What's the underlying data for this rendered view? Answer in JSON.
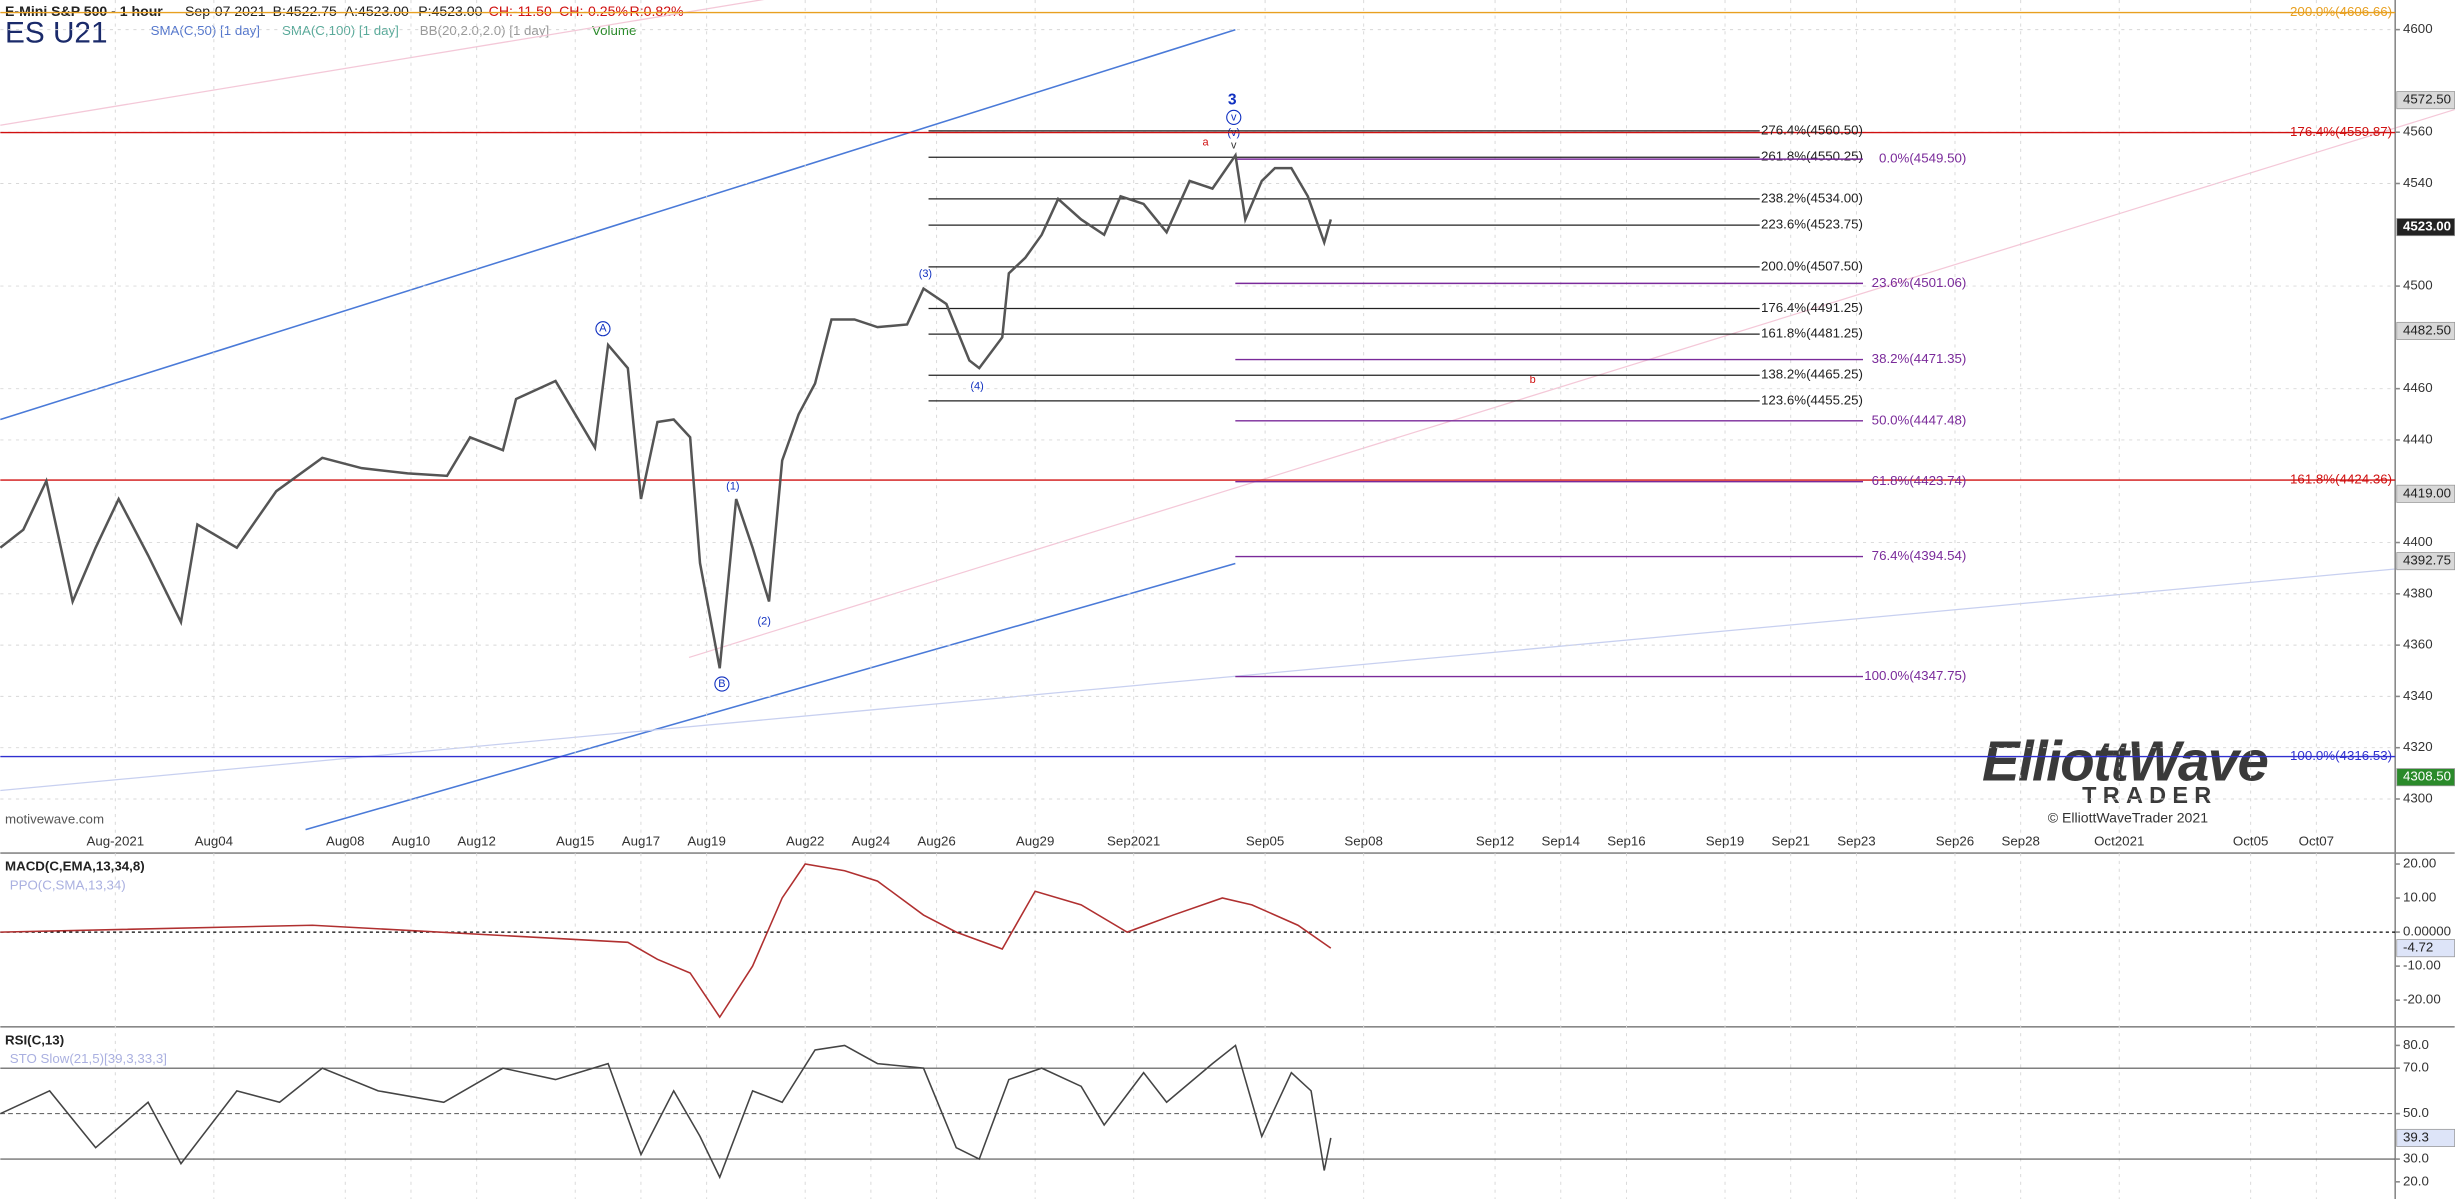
{
  "header": {
    "title": "E-Mini S&P 500 - 1 hour",
    "date": "Sep-07 2021",
    "bid": "B:4522.75",
    "ask": "A:4523.00",
    "price": "P:4523.00",
    "change": "CH:-11.50",
    "change_pct": "CH:-0.25%",
    "range": "R:0.82%",
    "symbol": "ES U21",
    "indicators": [
      "SMA(C,50) [1 day]",
      "SMA(C,100) [1 day]",
      "BB(20,2.0,2.0) [1 day]",
      "Volume"
    ]
  },
  "footer": {
    "source": "motivewave.com"
  },
  "logo": {
    "name": "ElliottWave",
    "sub": "TRADER",
    "copyright": "© ElliottWaveTrader 2021"
  },
  "chart_data": [
    {
      "type": "line",
      "color": "#555555",
      "grid": true,
      "x": [
        -2.5,
        -1.8,
        -1.1,
        -0.3,
        0.4,
        1.1,
        2.0,
        3.0,
        3.5,
        4.7,
        5.9,
        7.3,
        8.5,
        9.9,
        11.1,
        11.8,
        12.8,
        13.2,
        14.4,
        15.6,
        16.0,
        16.6,
        17.0,
        17.5,
        18.0,
        18.5,
        18.8,
        19.4,
        19.9,
        20.4,
        20.9,
        21.3,
        21.8,
        22.3,
        22.8,
        23.5,
        24.2,
        25.1,
        25.6,
        26.3,
        27.0,
        27.3,
        28.0,
        28.2,
        28.7,
        29.2,
        29.7,
        30.4,
        31.1,
        31.6,
        32.3,
        33.0,
        33.7,
        34.4,
        35.1,
        35.4,
        35.9,
        36.3,
        36.8,
        37.3,
        37.8,
        38.0
      ],
      "values": [
        4398,
        4405,
        4424,
        4377,
        4398,
        4417,
        4395,
        4369,
        4407,
        4398,
        4420,
        4433,
        4429,
        4427,
        4426,
        4441,
        4436,
        4456,
        4463,
        4437,
        4477,
        4468,
        4417,
        4447,
        4448,
        4441,
        4392,
        4351,
        4417,
        4398,
        4377,
        4432,
        4450,
        4462,
        4487,
        4487,
        4484,
        4485,
        4499,
        4493,
        4471,
        4468,
        4480,
        4505,
        4511,
        4520,
        4534,
        4526,
        4520,
        4535,
        4532,
        4521,
        4541,
        4538,
        4551,
        4526,
        4541,
        4546,
        4546,
        4535,
        4517,
        4526
      ],
      "xlim": [
        -2.5,
        70.4
      ],
      "ylim": [
        4296,
        4608.5
      ],
      "xticks": [
        {
          "value": 1,
          "label": "Aug-2021"
        },
        {
          "value": 4,
          "label": "Aug04"
        },
        {
          "value": 8,
          "label": "Aug08"
        },
        {
          "value": 10,
          "label": "Aug10"
        },
        {
          "value": 12,
          "label": "Aug12"
        },
        {
          "value": 15,
          "label": "Aug15"
        },
        {
          "value": 17,
          "label": "Aug17"
        },
        {
          "value": 19,
          "label": "Aug19"
        },
        {
          "value": 22,
          "label": "Aug22"
        },
        {
          "value": 24,
          "label": "Aug24"
        },
        {
          "value": 26,
          "label": "Aug26"
        },
        {
          "value": 29,
          "label": "Aug29"
        },
        {
          "value": 32,
          "label": "Sep2021"
        },
        {
          "value": 36,
          "label": "Sep05"
        },
        {
          "value": 39,
          "label": "Sep08"
        },
        {
          "value": 43,
          "label": "Sep12"
        },
        {
          "value": 45,
          "label": "Sep14"
        },
        {
          "value": 47,
          "label": "Sep16"
        },
        {
          "value": 50,
          "label": "Sep19"
        },
        {
          "value": 52,
          "label": "Sep21"
        },
        {
          "value": 54,
          "label": "Sep23"
        },
        {
          "value": 57,
          "label": "Sep26"
        },
        {
          "value": 59,
          "label": "Sep28"
        },
        {
          "value": 62,
          "label": "Oct2021"
        },
        {
          "value": 66,
          "label": "Oct05"
        },
        {
          "value": 68,
          "label": "Oct07"
        }
      ],
      "yticks": [
        4300,
        4320,
        4340,
        4360,
        4380,
        4400,
        4440,
        4460,
        4500,
        4540,
        4560,
        4600
      ],
      "price_markers": [
        {
          "value": 4572.5,
          "label": "4572.50"
        },
        {
          "value": 4523,
          "label": "4523.00",
          "color": "#222222"
        },
        {
          "value": 4482.5,
          "label": "4482.50"
        },
        {
          "value": 4419,
          "label": "4419.00"
        },
        {
          "value": 4392.75,
          "label": "4392.75"
        },
        {
          "value": 4308.5,
          "label": "4308.50",
          "color": "#2a8a2a"
        }
      ],
      "fib_extensions": [
        {
          "value": 4560.5,
          "label": "276.4%(4560.50)"
        },
        {
          "value": 4550.25,
          "label": "261.8%(4550.25)"
        },
        {
          "value": 4534,
          "label": "238.2%(4534.00)"
        },
        {
          "value": 4523.75,
          "label": "223.6%(4523.75)"
        },
        {
          "value": 4507.5,
          "label": "200.0%(4507.50)"
        },
        {
          "value": 4491.25,
          "label": "176.4%(4491.25)"
        },
        {
          "value": 4481.25,
          "label": "161.8%(4481.25)"
        },
        {
          "value": 4465.25,
          "label": "138.2%(4465.25)"
        },
        {
          "value": 4455.25,
          "label": "123.6%(4455.25)"
        }
      ],
      "fib_retracements": [
        {
          "value": 4549.5,
          "label": "0.0%(4549.50)"
        },
        {
          "value": 4501.06,
          "label": "23.6%(4501.06)"
        },
        {
          "value": 4471.35,
          "label": "38.2%(4471.35)"
        },
        {
          "value": 4447.48,
          "label": "50.0%(4447.48)"
        },
        {
          "value": 4423.74,
          "label": "61.8%(4423.74)"
        },
        {
          "value": 4394.54,
          "label": "76.4%(4394.54)"
        },
        {
          "value": 4347.75,
          "label": "100.0%(4347.75)"
        }
      ],
      "projection_lines": [
        {
          "value": 4606.66,
          "label": "200.0%(4606.66)",
          "color": "#e8a020"
        },
        {
          "value": 4559.87,
          "label": "176.4%(4559.87)",
          "color": "#d01010"
        },
        {
          "value": 4424.36,
          "label": "161.8%(4424.36)",
          "color": "#d01010"
        },
        {
          "value": 4316.53,
          "label": "100.0%(4316.53)",
          "color": "#3030d0"
        }
      ],
      "wave_labels": [
        "3",
        "v",
        "(v)",
        "a",
        "v",
        "(3)",
        "(4)",
        "A",
        "B",
        "(1)",
        "(2)",
        "b"
      ]
    },
    {
      "type": "line",
      "title": "MACD(C,EMA,13,34,8)",
      "subtitle": "PPO(C,SMA,13,34)",
      "color": "#b03030",
      "x": [
        -2.5,
        7.0,
        16.6,
        17.5,
        18.5,
        19.4,
        20.4,
        21.3,
        22.0,
        23.2,
        24.2,
        25.6,
        26.6,
        28.0,
        29.0,
        30.4,
        31.8,
        33.2,
        34.7,
        35.6,
        37.0,
        38.0
      ],
      "values": [
        0,
        2,
        -3,
        -8,
        -12,
        -25,
        -10,
        10,
        20,
        18,
        15,
        5,
        0,
        -5,
        12,
        8,
        0,
        5,
        10,
        8,
        2,
        -4.72
      ],
      "xlim": [
        -2.5,
        70.4
      ],
      "ylim": [
        -26,
        22.3
      ],
      "yticks": [
        {
          "value": 20,
          "label": "20.00"
        },
        {
          "value": 10,
          "label": "10.00"
        },
        {
          "value": 0,
          "label": "0.00000"
        },
        {
          "value": -10,
          "label": "-10.00"
        },
        {
          "value": -20,
          "label": "-20.00"
        }
      ],
      "markers": [
        {
          "value": -4.72,
          "label": "-4.72"
        }
      ]
    },
    {
      "type": "line",
      "title": "RSI(C,13)",
      "subtitle": "STO Slow(21,5)[39,3,33,3]",
      "color": "#444444",
      "x": [
        -2.5,
        -1.0,
        0.4,
        2.0,
        3.0,
        4.7,
        6.0,
        7.3,
        9.0,
        11.0,
        12.8,
        14.4,
        16.0,
        17.0,
        18.0,
        18.8,
        19.4,
        20.4,
        21.3,
        22.3,
        23.2,
        24.2,
        25.6,
        26.6,
        27.3,
        28.2,
        29.2,
        30.4,
        31.1,
        32.3,
        33.0,
        34.4,
        35.1,
        35.9,
        36.8,
        37.4,
        37.8,
        38.0
      ],
      "values": [
        50,
        60,
        35,
        55,
        28,
        60,
        55,
        70,
        60,
        55,
        70,
        65,
        72,
        32,
        60,
        40,
        22,
        60,
        55,
        78,
        80,
        72,
        70,
        35,
        30,
        65,
        70,
        62,
        45,
        68,
        55,
        72,
        80,
        40,
        68,
        60,
        25,
        39.3
      ],
      "xlim": [
        -2.5,
        70.4
      ],
      "ylim": [
        15.2,
        86.8
      ],
      "yticks": [
        {
          "value": 80,
          "label": "80.0"
        },
        {
          "value": 70,
          "label": "70.0"
        },
        {
          "value": 50,
          "label": "50.0"
        },
        {
          "value": 30,
          "label": "30.0"
        },
        {
          "value": 20,
          "label": "20.0"
        }
      ],
      "reference_lines": [
        70,
        50,
        30
      ],
      "markers": [
        {
          "value": 39.3,
          "label": "39.3"
        }
      ]
    }
  ]
}
